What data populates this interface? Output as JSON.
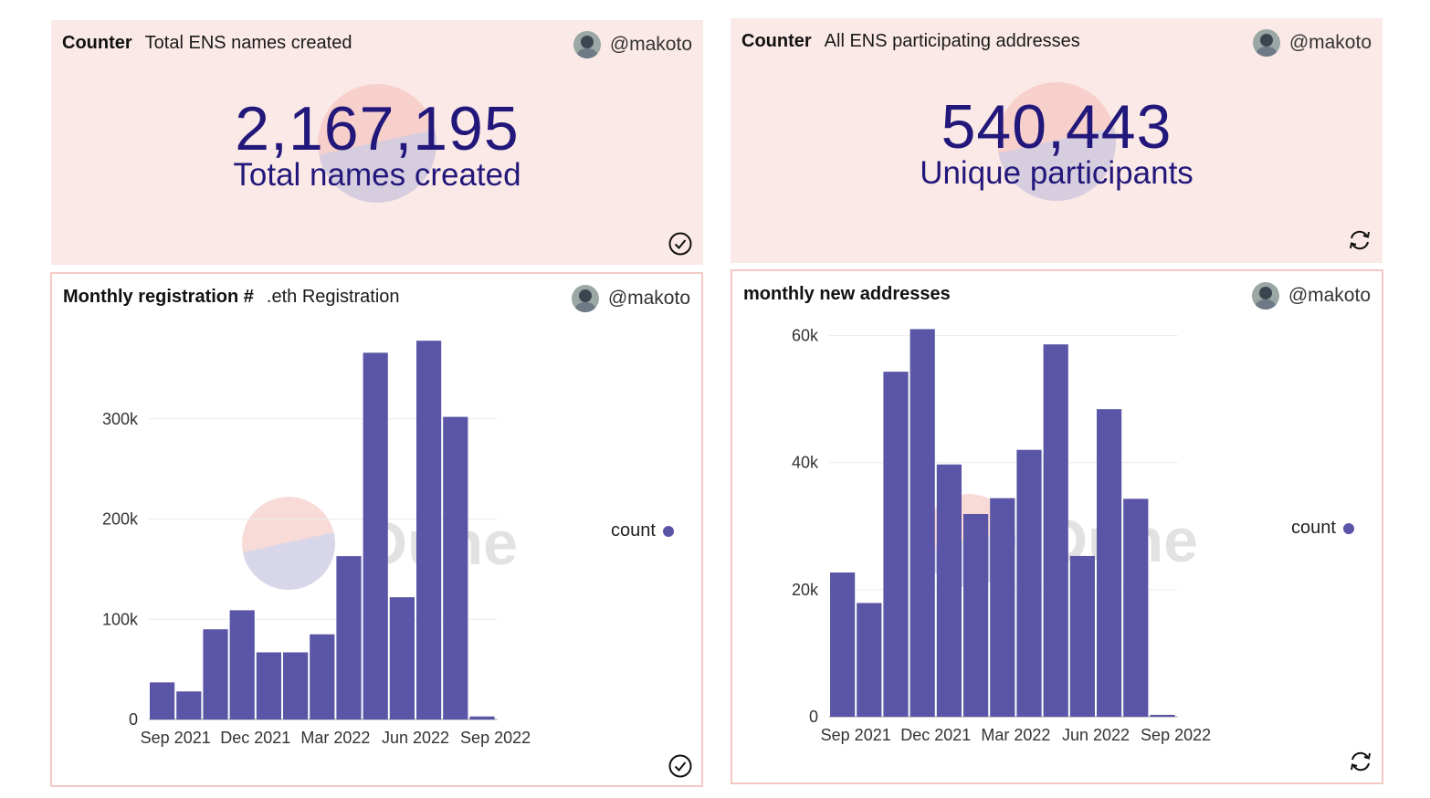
{
  "colors": {
    "bar": "#5a55a6",
    "counter_text": "#22177a",
    "panel_bg": "#fbe9e7",
    "border": "#f4c9c4"
  },
  "panels": [
    {
      "type": "Counter",
      "name": "Total ENS names created",
      "author": "@makoto",
      "value": "2,167,195",
      "label": "Total names created",
      "status_icon": "check-circle-icon"
    },
    {
      "type": "Counter",
      "name": "All ENS participating addresses",
      "author": "@makoto",
      "value": "540,443",
      "label": "Unique participants",
      "status_icon": "refresh-icon"
    },
    {
      "type": "Monthly registration #",
      "name": ".eth Registration",
      "author": "@makoto",
      "legend": "count",
      "status_icon": "check-circle-icon"
    },
    {
      "type": "monthly new addresses",
      "name": "",
      "author": "@makoto",
      "legend": "count",
      "status_icon": "refresh-icon"
    }
  ],
  "watermark": "Dune",
  "chart_data": [
    {
      "type": "bar",
      "title": "Monthly registration # .eth Registration",
      "series": [
        {
          "name": "count",
          "values": [
            37000,
            28000,
            90000,
            109000,
            67000,
            67000,
            85000,
            163000,
            366000,
            122000,
            378000,
            302000,
            3000
          ]
        }
      ],
      "months": [
        "Aug 2021",
        "Sep 2021",
        "Oct 2021",
        "Nov 2021",
        "Dec 2021",
        "Jan 2022",
        "Feb 2022",
        "Mar 2022",
        "Apr 2022",
        "May 2022",
        "Jun 2022",
        "Jul 2022",
        "Aug 2022"
      ],
      "x_ticks": [
        "Sep 2021",
        "Dec 2021",
        "Mar 2022",
        "Jun 2022",
        "Sep 2022"
      ],
      "y_ticks": [
        0,
        100000,
        200000,
        300000
      ],
      "y_tick_labels": [
        "0",
        "100k",
        "200k",
        "300k"
      ],
      "ylim": [
        0,
        390000
      ],
      "legend": "count",
      "grid": true
    },
    {
      "type": "bar",
      "title": "monthly new addresses",
      "series": [
        {
          "name": "count",
          "values": [
            22700,
            17900,
            54300,
            61000,
            39700,
            31900,
            34400,
            42000,
            58600,
            25300,
            48400,
            34300,
            300
          ]
        }
      ],
      "months": [
        "Aug 2021",
        "Sep 2021",
        "Oct 2021",
        "Nov 2021",
        "Dec 2021",
        "Jan 2022",
        "Feb 2022",
        "Mar 2022",
        "Apr 2022",
        "May 2022",
        "Jun 2022",
        "Jul 2022",
        "Aug 2022"
      ],
      "x_ticks": [
        "Sep 2021",
        "Dec 2021",
        "Mar 2022",
        "Jun 2022",
        "Sep 2022"
      ],
      "y_ticks": [
        0,
        20000,
        40000,
        60000
      ],
      "y_tick_labels": [
        "0",
        "20k",
        "40k",
        "60k"
      ],
      "ylim": [
        0,
        61500
      ],
      "legend": "count",
      "grid": true
    }
  ]
}
